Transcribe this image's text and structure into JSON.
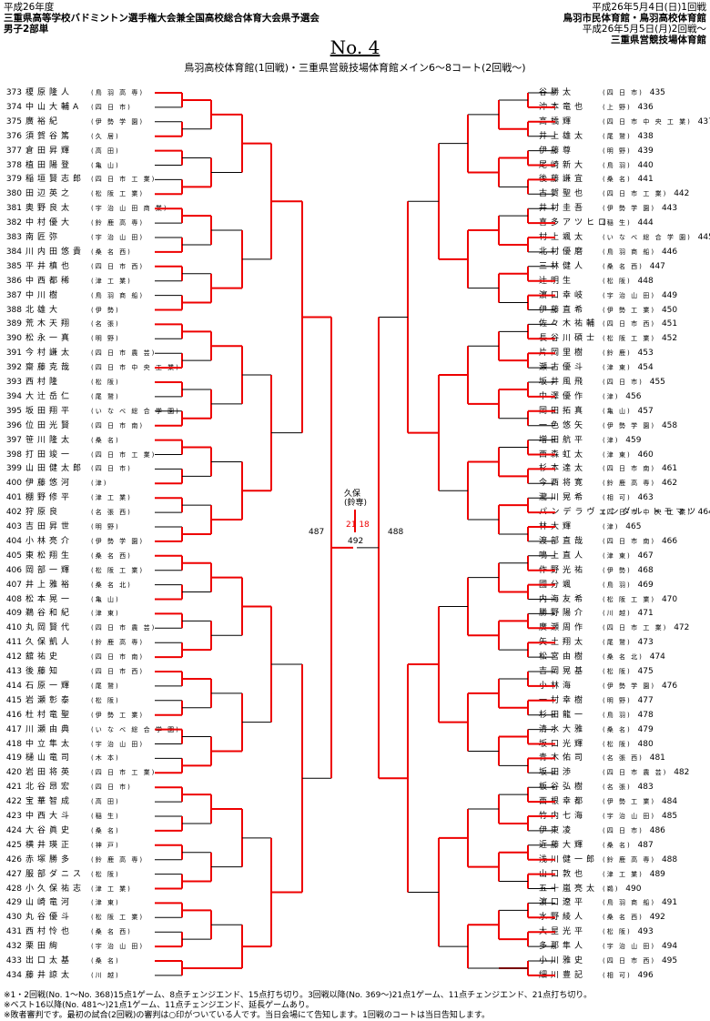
{
  "header": {
    "year": "平成26年度",
    "tournament": "三重県高等学校バドミントン選手権大会兼全国高校総合体育大会県予選会",
    "event": "男子2部単",
    "date1": "平成26年5月4日(日)1回戦",
    "venue1": "鳥羽市民体育館・鳥羽高校体育館",
    "date2": "平成26年5月5日(月)2回戦～",
    "venue2": "三重県営競技場体育館"
  },
  "doc_no": "No. 4",
  "venue_line": "鳥羽高校体育館(1回戦)・三重県営競技場体育館メイン6～8コート(2回戦～)",
  "left_players": [
    {
      "num": "373",
      "name": "榎原隆人",
      "school": "(鳥 羽 高 専)"
    },
    {
      "num": "374",
      "name": "中山大輔A",
      "school": "(四 日 市)"
    },
    {
      "num": "375",
      "name": "廣裕紀",
      "school": "(伊 勢 学 園)"
    },
    {
      "num": "376",
      "name": "須賀谷篤",
      "school": "(久 居)"
    },
    {
      "num": "377",
      "name": "倉田昇輝",
      "school": "(高 田)"
    },
    {
      "num": "378",
      "name": "植田陽登",
      "school": "(亀 山)"
    },
    {
      "num": "379",
      "name": "稲垣賢志郎",
      "school": "(四 日 市 工 業)"
    },
    {
      "num": "380",
      "name": "田辺英之",
      "school": "(松 阪 工 業)"
    },
    {
      "num": "381",
      "name": "奥野良太",
      "school": "(宇 治 山 田 商 業)"
    },
    {
      "num": "382",
      "name": "中村優大",
      "school": "(鈴 鹿 高 専)"
    },
    {
      "num": "383",
      "name": "南匠弥",
      "school": "(宇 治 山 田)"
    },
    {
      "num": "384",
      "name": "川内田悠貴",
      "school": "(桑 名 西)"
    },
    {
      "num": "385",
      "name": "平井槙也",
      "school": "(四 日 市 西)"
    },
    {
      "num": "386",
      "name": "中西都稀",
      "school": "(津 工 業)"
    },
    {
      "num": "387",
      "name": "中川樹",
      "school": "(鳥 羽 商 船)"
    },
    {
      "num": "388",
      "name": "北雄大",
      "school": "(伊 勢)"
    },
    {
      "num": "389",
      "name": "荒木天翔",
      "school": "(名 張)"
    },
    {
      "num": "390",
      "name": "松永一真",
      "school": "(明 野)"
    },
    {
      "num": "391",
      "name": "今村謙太",
      "school": "(四 日 市 農 芸)"
    },
    {
      "num": "392",
      "name": "齋藤克哉",
      "school": "(四 日 市 中 央 工 業)"
    },
    {
      "num": "393",
      "name": "西村隆",
      "school": "(松 阪)"
    },
    {
      "num": "394",
      "name": "大辻岳仁",
      "school": "(尾 鷲)"
    },
    {
      "num": "395",
      "name": "坂田翔平",
      "school": "(い な べ 総 合 学 園)"
    },
    {
      "num": "396",
      "name": "位田光賢",
      "school": "(四 日 市 南)"
    },
    {
      "num": "397",
      "name": "笹川隆太",
      "school": "(桑 名)"
    },
    {
      "num": "398",
      "name": "打田竣一",
      "school": "(四 日 市 工 業)"
    },
    {
      "num": "399",
      "name": "山田健太郎",
      "school": "(四 日 市)"
    },
    {
      "num": "400",
      "name": "伊藤悠河",
      "school": "(津)"
    },
    {
      "num": "401",
      "name": "棚野修平",
      "school": "(津 工 業)"
    },
    {
      "num": "402",
      "name": "狩原良",
      "school": "(名 張 西)"
    },
    {
      "num": "403",
      "name": "吉田昇世",
      "school": "(明 野)"
    },
    {
      "num": "404",
      "name": "小林亮介",
      "school": "(伊 勢 学 園)"
    },
    {
      "num": "405",
      "name": "東松翔生",
      "school": "(桑 名 西)"
    },
    {
      "num": "406",
      "name": "岡部一輝",
      "school": "(松 阪 工 業)"
    },
    {
      "num": "407",
      "name": "井上雅裕",
      "school": "(桑 名 北)"
    },
    {
      "num": "408",
      "name": "松本晃一",
      "school": "(亀 山)"
    },
    {
      "num": "409",
      "name": "鵜谷和紀",
      "school": "(津 東)"
    },
    {
      "num": "410",
      "name": "丸岡賢代",
      "school": "(四 日 市 農 芸)"
    },
    {
      "num": "411",
      "name": "久保凱人",
      "school": "(鈴 鹿 高 専)"
    },
    {
      "num": "412",
      "name": "舘祐史",
      "school": "(四 日 市 南)"
    },
    {
      "num": "413",
      "name": "後藤知",
      "school": "(四 日 市 西)"
    },
    {
      "num": "414",
      "name": "石原一輝",
      "school": "(尾 鷲)"
    },
    {
      "num": "415",
      "name": "岩瀬彰泰",
      "school": "(松 阪)"
    },
    {
      "num": "416",
      "name": "杜村竜聖",
      "school": "(伊 勢 工 業)"
    },
    {
      "num": "417",
      "name": "川瀬由典",
      "school": "(い な べ 総 合 学 園)"
    },
    {
      "num": "418",
      "name": "中立隼太",
      "school": "(宇 治 山 田)"
    },
    {
      "num": "419",
      "name": "樋山竜司",
      "school": "(木 本)"
    },
    {
      "num": "420",
      "name": "岩田将英",
      "school": "(四 日 市 工 業)"
    },
    {
      "num": "421",
      "name": "北谷昂宏",
      "school": "(四 日 市)"
    },
    {
      "num": "422",
      "name": "宝華智成",
      "school": "(高 田)"
    },
    {
      "num": "423",
      "name": "中西大斗",
      "school": "(稲 生)"
    },
    {
      "num": "424",
      "name": "大谷眞史",
      "school": "(桑 名)"
    },
    {
      "num": "425",
      "name": "横井瑛正",
      "school": "(神 戸)"
    },
    {
      "num": "426",
      "name": "赤塚勝多",
      "school": "(鈴 鹿 高 専)"
    },
    {
      "num": "427",
      "name": "服部ダニス",
      "school": "(松 阪)"
    },
    {
      "num": "428",
      "name": "小久保祐志",
      "school": "(津 工 業)"
    },
    {
      "num": "429",
      "name": "山崎竜河",
      "school": "(津 東)"
    },
    {
      "num": "430",
      "name": "丸谷優斗",
      "school": "(松 阪 工 業)"
    },
    {
      "num": "431",
      "name": "西村怜也",
      "school": "(桑 名 西)"
    },
    {
      "num": "432",
      "name": "栗田絢",
      "school": "(宇 治 山 田)"
    },
    {
      "num": "433",
      "name": "出口太基",
      "school": "(桑 名)"
    },
    {
      "num": "434",
      "name": "藤井諒太",
      "school": "(川 越)"
    }
  ],
  "right_players": [
    {
      "num": "435",
      "name": "谷勝太",
      "school": "(四 日 市)"
    },
    {
      "num": "436",
      "name": "沖本竜也",
      "school": "(上 野)"
    },
    {
      "num": "437",
      "name": "高橋輝",
      "school": "(四 日 市 中 央 工 業)"
    },
    {
      "num": "438",
      "name": "井上雄太",
      "school": "(尾 鷲)"
    },
    {
      "num": "439",
      "name": "伊藤尊",
      "school": "(明 野)"
    },
    {
      "num": "440",
      "name": "尾崎新大",
      "school": "(鳥 羽)"
    },
    {
      "num": "441",
      "name": "後藤謙宜",
      "school": "(桑 名)"
    },
    {
      "num": "442",
      "name": "古賀聖也",
      "school": "(四 日 市 工 業)"
    },
    {
      "num": "443",
      "name": "井村圭吾",
      "school": "(伊 勢 学 園)"
    },
    {
      "num": "444",
      "name": "喜多アツヒロ",
      "school": "(稲 生)"
    },
    {
      "num": "445",
      "name": "村上颯太",
      "school": "(い な べ 総 合 学 園)"
    },
    {
      "num": "446",
      "name": "北村優磨",
      "school": "(鳥 羽 商 船)"
    },
    {
      "num": "447",
      "name": "三林健人",
      "school": "(桑 名 西)"
    },
    {
      "num": "448",
      "name": "辻明生",
      "school": "(松 阪)"
    },
    {
      "num": "449",
      "name": "濵口幸岐",
      "school": "(宇 治 山 田)"
    },
    {
      "num": "450",
      "name": "伊藤直希",
      "school": "(伊 勢 工 業)"
    },
    {
      "num": "451",
      "name": "佐々木祐輔",
      "school": "(四 日 市 西)"
    },
    {
      "num": "452",
      "name": "長谷川碩士",
      "school": "(松 阪 工 業)"
    },
    {
      "num": "453",
      "name": "片岡里樹",
      "school": "(鈴 鹿)"
    },
    {
      "num": "454",
      "name": "瀬古優斗",
      "school": "(津 東)"
    },
    {
      "num": "455",
      "name": "坂井風飛",
      "school": "(四 日 市)"
    },
    {
      "num": "456",
      "name": "中澤優作",
      "school": "(津)"
    },
    {
      "num": "457",
      "name": "岡田拓真",
      "school": "(亀 山)"
    },
    {
      "num": "458",
      "name": "一色悠矢",
      "school": "(伊 勢 学 園)"
    },
    {
      "num": "459",
      "name": "増田航平",
      "school": "(津)"
    },
    {
      "num": "460",
      "name": "西森虹太",
      "school": "(津 東)"
    },
    {
      "num": "461",
      "name": "杉本達太",
      "school": "(四 日 市 南)"
    },
    {
      "num": "462",
      "name": "今西将寛",
      "school": "(鈴 鹿 高 専)"
    },
    {
      "num": "463",
      "name": "瀧川晃希",
      "school": "(相 可)"
    },
    {
      "num": "464",
      "name": "パンデラヴェンダル トモマツ",
      "school": "(四 日 市 中 央 工 業)"
    },
    {
      "num": "465",
      "name": "林大輝",
      "school": "(津)"
    },
    {
      "num": "466",
      "name": "渡部直哉",
      "school": "(四 日 市 南)"
    },
    {
      "num": "467",
      "name": "鳴上直人",
      "school": "(津 東)"
    },
    {
      "num": "468",
      "name": "作野光祐",
      "school": "(伊 勢)"
    },
    {
      "num": "469",
      "name": "國分颯",
      "school": "(鳥 羽)"
    },
    {
      "num": "470",
      "name": "内海友希",
      "school": "(松 阪 工 業)"
    },
    {
      "num": "471",
      "name": "勝野陽介",
      "school": "(川 越)"
    },
    {
      "num": "472",
      "name": "廣瀬周作",
      "school": "(四 日 市 工 業)"
    },
    {
      "num": "473",
      "name": "矢土翔太",
      "school": "(尾 鷲)"
    },
    {
      "num": "474",
      "name": "松宮由樹",
      "school": "(桑 名 北)"
    },
    {
      "num": "475",
      "name": "吉岡晃基",
      "school": "(松 阪)"
    },
    {
      "num": "476",
      "name": "小林海",
      "school": "(伊 勢 学 園)"
    },
    {
      "num": "477",
      "name": "一村幸樹",
      "school": "(明 野)"
    },
    {
      "num": "478",
      "name": "杉田龍一",
      "school": "(鳥 羽)"
    },
    {
      "num": "479",
      "name": "清水大雅",
      "school": "(桑 名)"
    },
    {
      "num": "480",
      "name": "坂口光輝",
      "school": "(松 阪)"
    },
    {
      "num": "481",
      "name": "青木佑司",
      "school": "(名 張 西)"
    },
    {
      "num": "482",
      "name": "坂田渉",
      "school": "(四 日 市 農 芸)"
    },
    {
      "num": "483",
      "name": "板谷弘樹",
      "school": "(名 張)"
    },
    {
      "num": "484",
      "name": "西根幸都",
      "school": "(伊 勢 工 業)"
    },
    {
      "num": "485",
      "name": "竹内七海",
      "school": "(宇 治 山 田)"
    },
    {
      "num": "486",
      "name": "伊東凌",
      "school": "(四 日 市)"
    },
    {
      "num": "487",
      "name": "近藤大輝",
      "school": "(桑 名)"
    },
    {
      "num": "488",
      "name": "浅川健一郎",
      "school": "(鈴 鹿 高 専)"
    },
    {
      "num": "489",
      "name": "山口敦也",
      "school": "(津 工 業)"
    },
    {
      "num": "490",
      "name": "五十嵐亮太",
      "school": "(鵜)"
    },
    {
      "num": "491",
      "name": "濵口遼平",
      "school": "(鳥 羽 商 船)"
    },
    {
      "num": "492",
      "name": "水野綾人",
      "school": "(桑 名 西)"
    },
    {
      "num": "493",
      "name": "大星光平",
      "school": "(松 阪)"
    },
    {
      "num": "494",
      "name": "多那隼人",
      "school": "(宇 治 山 田)"
    },
    {
      "num": "495",
      "name": "小川雅史",
      "school": "(四 日 市 西)"
    },
    {
      "num": "496",
      "name": "細川豊記",
      "school": "(相 可)"
    }
  ],
  "final_note": {
    "winner_name": "久保",
    "winner_school": "(鈴専)",
    "score": "21 18",
    "left_match": "487",
    "right_match": "488",
    "final_match": "492"
  },
  "footer": [
    "※1・2回戦(No. 1～No. 368)15点1ゲーム、8点チェンジエンド、15点打ち切り。3回戦以降(No. 369～)21点1ゲーム、11点チェンジエンド、21点打ち切り。",
    "※ベスト16以降(No. 481～)21点1ゲーム、11点チェンジエンド、延長ゲームあり。",
    "※敗者審判です。最初の試合(2回戦)の審判は○印がついている人です。当日会場にて告知します。1回戦のコートは当日告知します。"
  ]
}
